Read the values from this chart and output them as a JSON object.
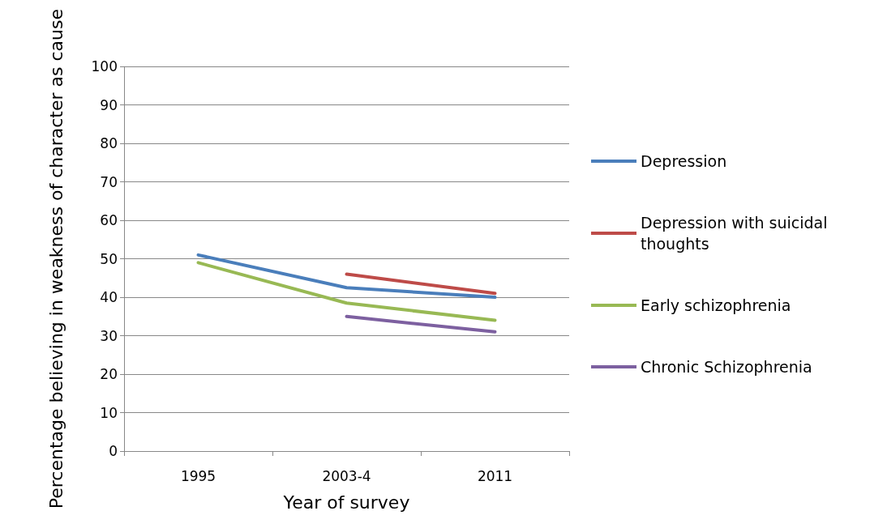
{
  "chart_data": {
    "type": "line",
    "xlabel": "Year of survey",
    "ylabel": "Percentage believing in weakness of character as cause",
    "categories": [
      "1995",
      "2003-4",
      "2011"
    ],
    "series": [
      {
        "name": "Depression",
        "color": "#4a7ebb",
        "values": [
          51,
          42.5,
          40
        ]
      },
      {
        "name": "Depression with suicidal thoughts",
        "color": "#be4b48",
        "values": [
          null,
          46,
          41
        ]
      },
      {
        "name": "Early schizophrenia",
        "color": "#98b954",
        "values": [
          49,
          38.5,
          34
        ]
      },
      {
        "name": "Chronic Schizophrenia",
        "color": "#7d60a0",
        "values": [
          null,
          35,
          31
        ]
      }
    ],
    "ylim": [
      0,
      100
    ],
    "yticks": [
      0,
      10,
      20,
      30,
      40,
      50,
      60,
      70,
      80,
      90,
      100
    ],
    "grid": "y",
    "legend": "right",
    "marker": "none",
    "line_style": "solid"
  }
}
